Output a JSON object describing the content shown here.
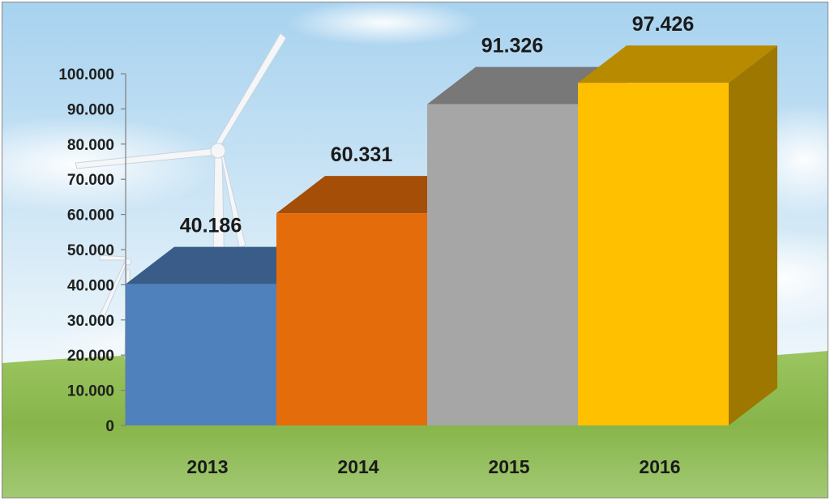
{
  "chart_data": {
    "type": "bar",
    "categories": [
      "2013",
      "2014",
      "2015",
      "2016"
    ],
    "values": [
      40186,
      60331,
      91326,
      97426
    ],
    "data_labels": [
      "40.186",
      "60.331",
      "91.326",
      "97.426"
    ],
    "ylim": [
      0,
      100000
    ],
    "yticks": [
      0,
      10000,
      20000,
      30000,
      40000,
      50000,
      60000,
      70000,
      80000,
      90000,
      100000
    ],
    "ytick_labels": [
      "0",
      "10.000",
      "20.000",
      "30.000",
      "40.000",
      "50.000",
      "60.000",
      "70.000",
      "80.000",
      "90.000",
      "100.000"
    ],
    "grid": false,
    "bar_style": "3d",
    "colors": [
      "#4f81bd",
      "#e46c0a",
      "#a6a6a6",
      "#ffc000"
    ],
    "background": "sky-with-grass-and-wind-turbine"
  }
}
